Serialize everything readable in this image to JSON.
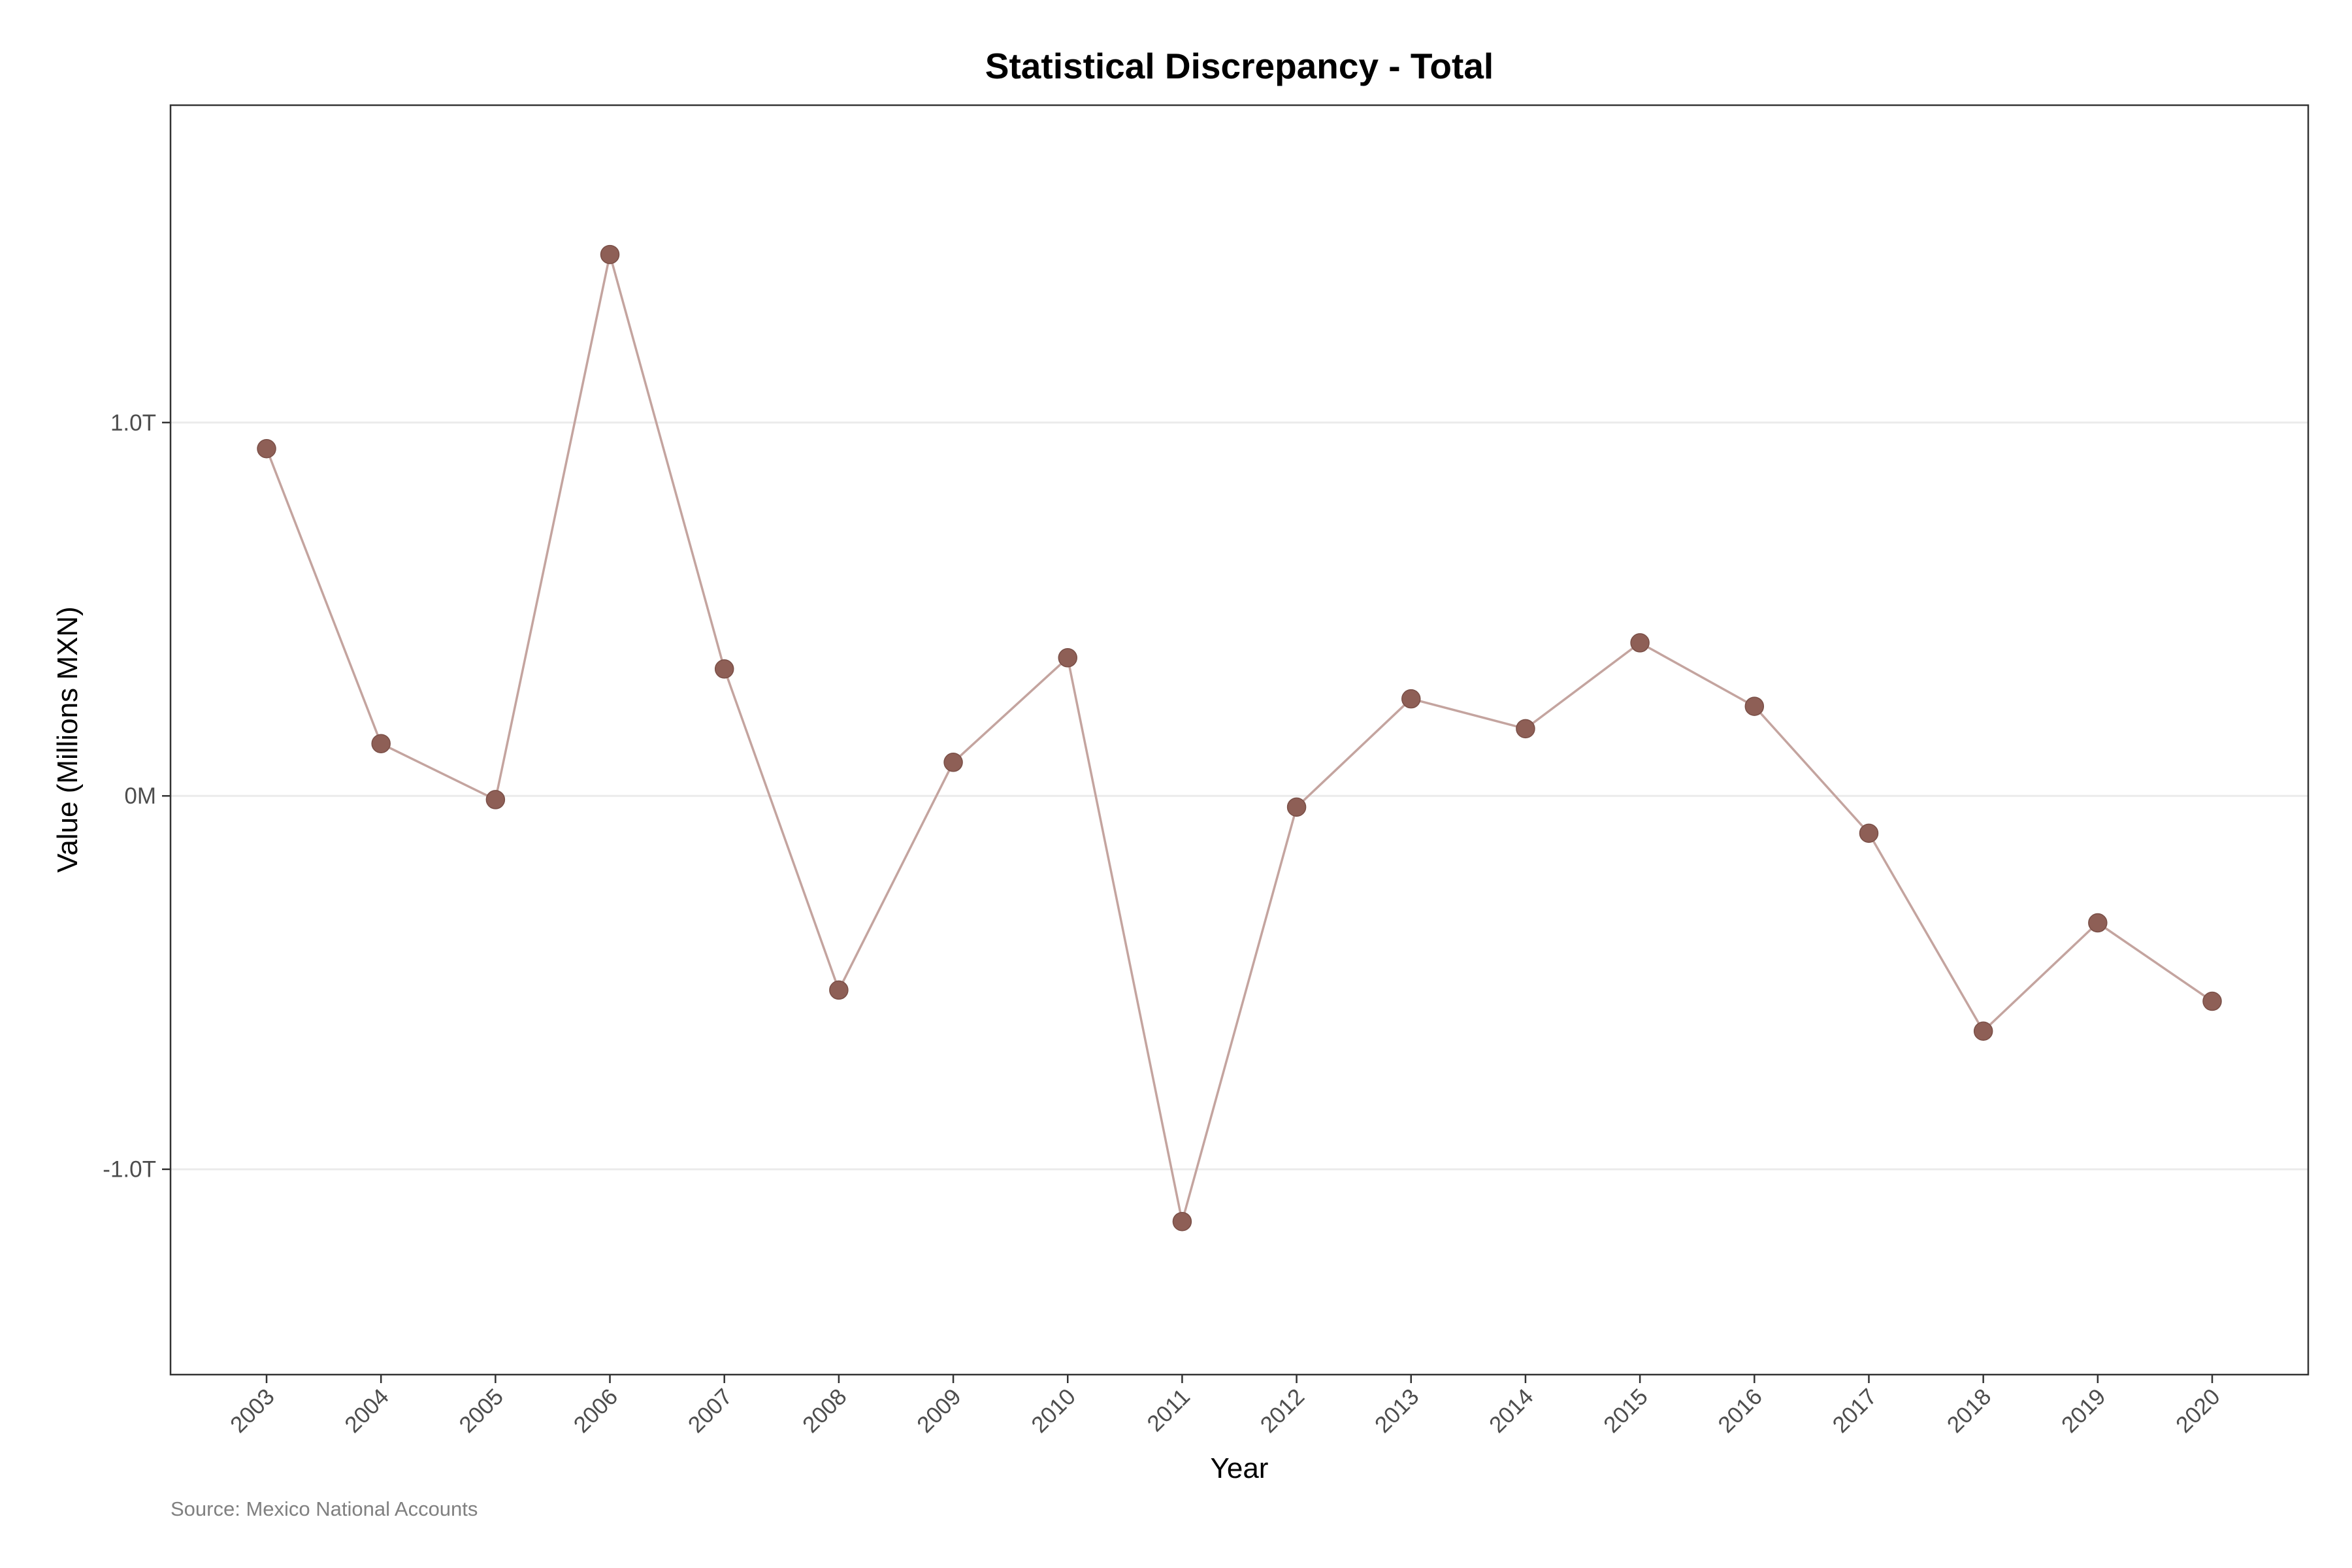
{
  "chart_data": {
    "type": "line",
    "title": "Statistical Discrepancy - Total",
    "xlabel": "Year",
    "ylabel": "Value (Millions MXN)",
    "caption": "Source: Mexico National Accounts",
    "x": [
      "2003",
      "2004",
      "2005",
      "2006",
      "2007",
      "2008",
      "2009",
      "2010",
      "2011",
      "2012",
      "2013",
      "2014",
      "2015",
      "2016",
      "2017",
      "2018",
      "2019",
      "2020"
    ],
    "series": [
      {
        "values": [
          0.93,
          0.14,
          -0.01,
          1.45,
          0.34,
          -0.52,
          0.09,
          0.37,
          -1.14,
          -0.03,
          0.26,
          0.18,
          0.41,
          0.24,
          -0.1,
          -0.63,
          -0.34,
          -0.55
        ],
        "line_color": "#c4a49f",
        "point_color": "#8e5f56"
      }
    ],
    "ylim": [
      -1.55,
      1.85
    ],
    "y_ticks": [
      {
        "value": -1.0,
        "label": "-1.0T"
      },
      {
        "value": 0.0,
        "label": "0M"
      },
      {
        "value": 1.0,
        "label": "1.0T"
      }
    ],
    "grid": true,
    "legend": "none"
  }
}
